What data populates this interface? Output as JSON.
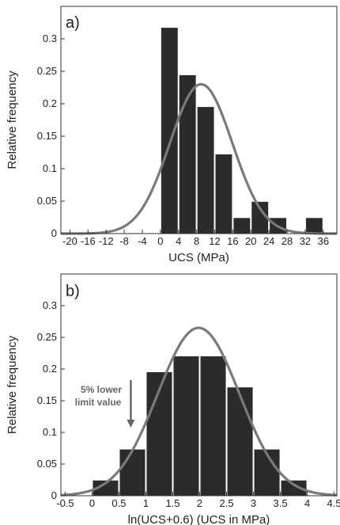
{
  "colors": {
    "bar": "#2b2b2b",
    "curve": "#7a7a7a",
    "frame": "#333333",
    "annotation": "#666666"
  },
  "chart_data": [
    {
      "panel_label": "a)",
      "type": "bar",
      "xlabel": "UCS (MPa)",
      "ylabel": "Relative frequency",
      "xlim": [
        -22,
        39
      ],
      "ylim": [
        0,
        0.35
      ],
      "xticks": [
        -20,
        -16,
        -12,
        -8,
        -4,
        0,
        4,
        8,
        12,
        16,
        20,
        24,
        28,
        32,
        36
      ],
      "yticks": [
        0,
        0.05,
        0.1,
        0.15,
        0.2,
        0.25,
        0.3
      ],
      "grid": false,
      "bin_width": 4,
      "bins": [
        {
          "x": 2,
          "value": 0.317
        },
        {
          "x": 6,
          "value": 0.244
        },
        {
          "x": 10,
          "value": 0.195
        },
        {
          "x": 14,
          "value": 0.122
        },
        {
          "x": 18,
          "value": 0.024
        },
        {
          "x": 22,
          "value": 0.049
        },
        {
          "x": 26,
          "value": 0.024
        },
        {
          "x": 30,
          "value": 0
        },
        {
          "x": 34,
          "value": 0.024
        }
      ],
      "fitted_curve": {
        "type": "normal",
        "mean": 9,
        "sd": 6.9,
        "peak": 0.23
      }
    },
    {
      "panel_label": "b)",
      "type": "bar",
      "xlabel": "ln(UCS+0.6) (UCS in MPa)",
      "ylabel": "Relative frequency",
      "xlim": [
        -0.58,
        4.55
      ],
      "ylim": [
        0,
        0.35
      ],
      "xticks": [
        -0.5,
        0,
        0.5,
        1,
        1.5,
        2,
        2.5,
        3,
        3.5,
        4,
        4.5
      ],
      "yticks": [
        0,
        0.05,
        0.1,
        0.15,
        0.2,
        0.25,
        0.3
      ],
      "grid": false,
      "bin_width": 0.5,
      "bins": [
        {
          "x": 0.25,
          "value": 0.024
        },
        {
          "x": 0.75,
          "value": 0.073
        },
        {
          "x": 1.25,
          "value": 0.195
        },
        {
          "x": 1.75,
          "value": 0.22
        },
        {
          "x": 2.25,
          "value": 0.22
        },
        {
          "x": 2.75,
          "value": 0.171
        },
        {
          "x": 3.25,
          "value": 0.073
        },
        {
          "x": 3.75,
          "value": 0.024
        }
      ],
      "fitted_curve": {
        "type": "normal",
        "mean": 1.98,
        "sd": 0.76,
        "peak": 0.265
      },
      "annotation": {
        "lines": [
          "5% lower",
          "limit value"
        ],
        "arrow_x": 0.72
      }
    }
  ]
}
